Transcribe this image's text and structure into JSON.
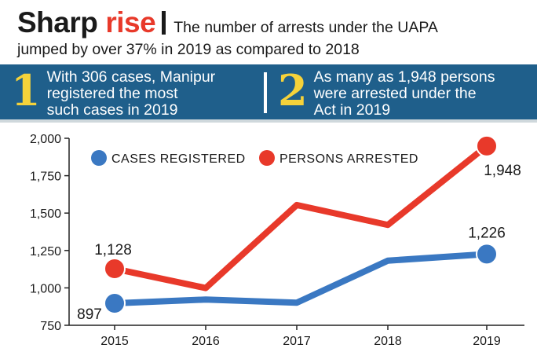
{
  "header": {
    "title_main": "Sharp",
    "title_accent": "rise",
    "subtitle_line1": "The number of arrests under the UAPA",
    "subtitle_line2": "jumped by over 37% in 2019 as compared to 2018"
  },
  "facts": [
    {
      "number": "1",
      "text": [
        "With 306 cases, Manipur",
        "registered the most",
        "such cases in 2019"
      ]
    },
    {
      "number": "2",
      "text": [
        "As many as 1,948 persons",
        "were arrested under the",
        "Act in 2019"
      ]
    }
  ],
  "colors": {
    "band": "#1f5f8b",
    "fact_number": "#f5d23a",
    "cases": "#3a78c2",
    "arrests": "#e8392a",
    "accent": "#e8392a"
  },
  "chart_data": {
    "type": "line",
    "x": [
      "2015",
      "2016",
      "2017",
      "2018",
      "2019"
    ],
    "ylim": [
      750,
      2000
    ],
    "yticks": [
      750,
      1000,
      1250,
      1500,
      1750,
      2000
    ],
    "ytick_labels": [
      "750",
      "1,000",
      "1,250",
      "1,500",
      "1,750",
      "2,000"
    ],
    "grid": false,
    "legend": "top-left",
    "series": [
      {
        "name": "CASES REGISTERED",
        "color": "#3a78c2",
        "values": [
          897,
          922,
          901,
          1182,
          1226
        ],
        "labels": [
          "897",
          "",
          "",
          "",
          "1,226"
        ]
      },
      {
        "name": "PERSONS ARRESTED",
        "color": "#e8392a",
        "values": [
          1128,
          999,
          1554,
          1421,
          1948
        ],
        "labels": [
          "1,128",
          "",
          "",
          "",
          "1,948"
        ]
      }
    ]
  }
}
